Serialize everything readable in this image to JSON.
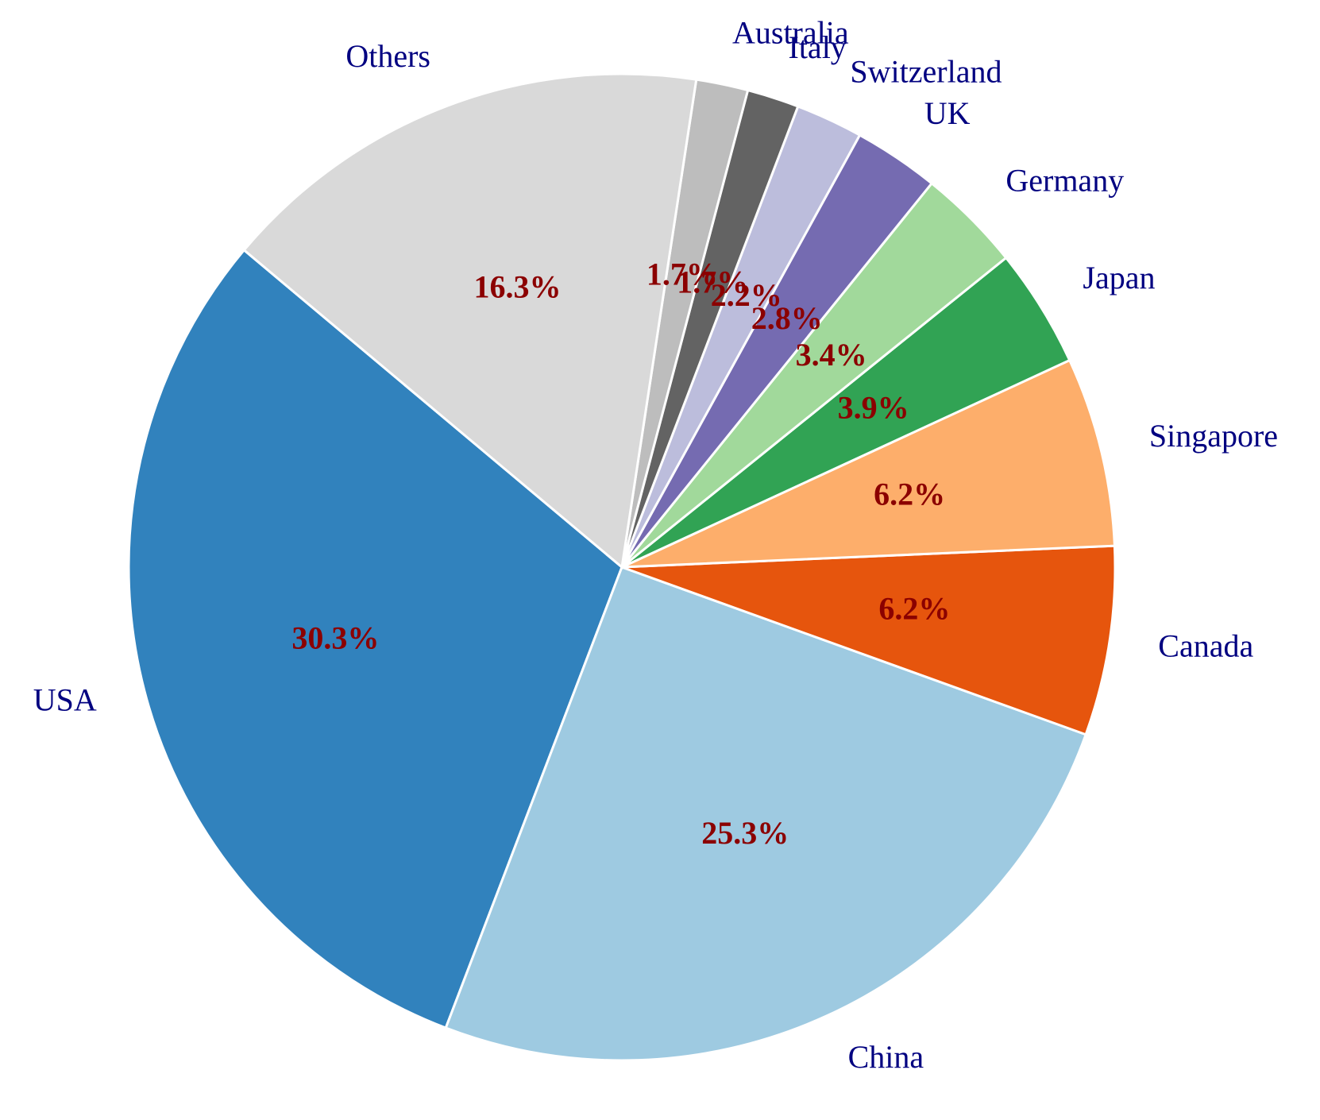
{
  "chart_data": {
    "type": "pie",
    "categories": [
      "USA",
      "China",
      "Canada",
      "Singapore",
      "Japan",
      "Germany",
      "UK",
      "Switzerland",
      "Italy",
      "Australia",
      "Others"
    ],
    "values": [
      30.3,
      25.3,
      6.2,
      6.2,
      3.9,
      3.4,
      2.8,
      2.2,
      1.7,
      1.7,
      16.3
    ],
    "value_labels": [
      "30.3%",
      "25.3%",
      "6.2%",
      "6.2%",
      "3.9%",
      "3.4%",
      "2.8%",
      "2.2%",
      "1.7%",
      "1.7%",
      "16.3%"
    ],
    "colors": [
      "#3182bd",
      "#9ecae1",
      "#e6550d",
      "#fdae6b",
      "#31a354",
      "#a1d99b",
      "#756bb1",
      "#bcbddc",
      "#636363",
      "#bdbdbd",
      "#d9d9d9"
    ]
  }
}
